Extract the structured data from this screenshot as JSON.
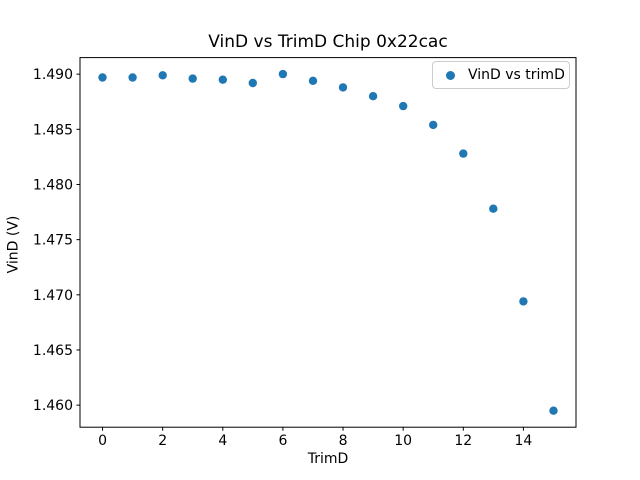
{
  "figure": {
    "background": "#ffffff",
    "text_color": "#000000",
    "spine_color": "#000000",
    "legend_border_color": "#cccccc"
  },
  "chart_data": {
    "type": "scatter",
    "title": "VinD vs TrimD Chip 0x22cac",
    "xlabel": "TrimD",
    "ylabel": "VinD (V)",
    "grid": false,
    "legend": {
      "position": "upper right",
      "label": "VinD vs trimD"
    },
    "xlim": [
      -0.75,
      15.75
    ],
    "ylim": [
      1.458,
      1.4915
    ],
    "xticks": [
      0,
      2,
      4,
      6,
      8,
      10,
      12,
      14
    ],
    "yticks": [
      1.46,
      1.465,
      1.47,
      1.475,
      1.48,
      1.485,
      1.49
    ],
    "series": [
      {
        "name": "VinD vs trimD",
        "color": "#1f77b4",
        "marker": "circle",
        "x": [
          0,
          1,
          2,
          3,
          4,
          5,
          6,
          7,
          8,
          9,
          10,
          11,
          12,
          13,
          14,
          15
        ],
        "y": [
          1.4897,
          1.4897,
          1.4899,
          1.4896,
          1.4895,
          1.4892,
          1.49,
          1.4894,
          1.4888,
          1.488,
          1.4871,
          1.4854,
          1.4828,
          1.4778,
          1.4694,
          1.4595
        ]
      }
    ]
  }
}
